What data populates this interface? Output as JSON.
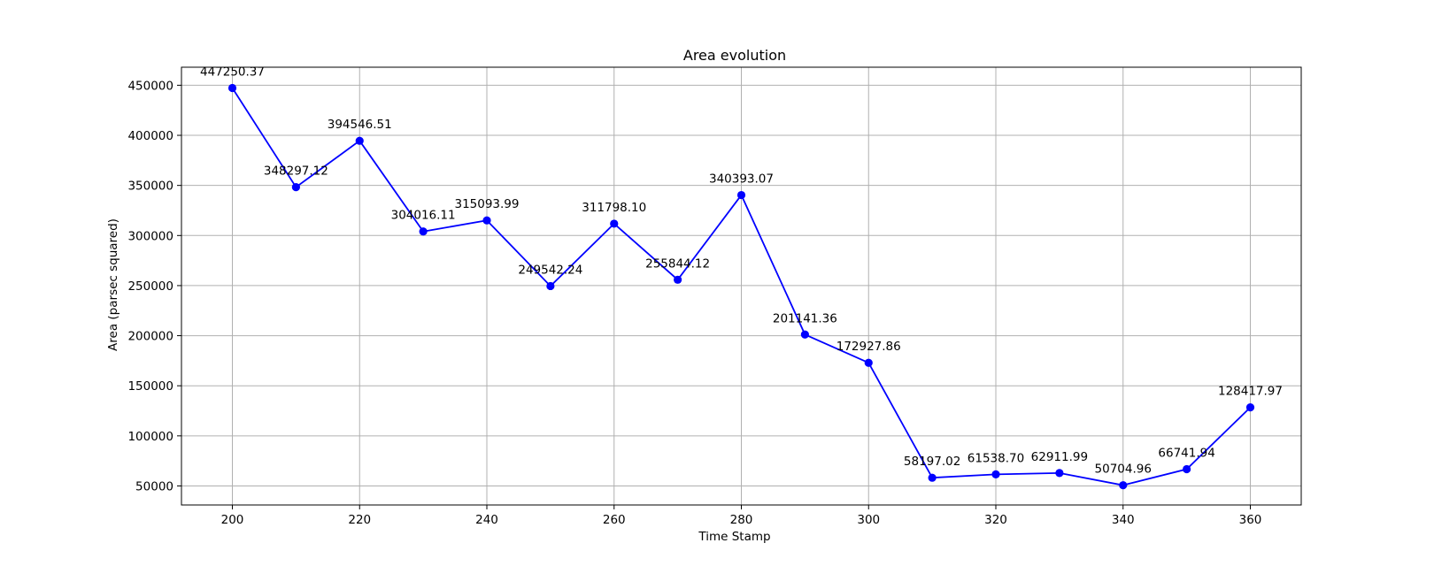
{
  "chart_data": {
    "type": "line",
    "title": "Area evolution",
    "xlabel": "Time Stamp",
    "ylabel": "Area (parsec squared)",
    "x": [
      200,
      210,
      220,
      230,
      240,
      250,
      260,
      270,
      280,
      290,
      300,
      310,
      320,
      330,
      340,
      350,
      360
    ],
    "series": [
      {
        "values": [
          447250.37,
          348297.12,
          394546.51,
          304016.11,
          315093.99,
          249542.24,
          311798.1,
          255844.12,
          340393.07,
          201141.36,
          172927.86,
          58197.02,
          61538.7,
          62911.99,
          50704.96,
          66741.94,
          128417.97
        ],
        "labels": [
          "447250.37",
          "348297.12",
          "394546.51",
          "304016.11",
          "315093.99",
          "249542.24",
          "311798.10",
          "255844.12",
          "340393.07",
          "201141.36",
          "172927.86",
          "58197.02",
          "61538.70",
          "62911.99",
          "50704.96",
          "66741.94",
          "128417.97"
        ],
        "color": "#0000ff",
        "marker": "circle"
      }
    ],
    "xticks": [
      200,
      220,
      240,
      260,
      280,
      300,
      320,
      340,
      360
    ],
    "yticks": [
      50000,
      100000,
      150000,
      200000,
      250000,
      300000,
      350000,
      400000,
      450000
    ],
    "xlim": [
      192,
      368
    ],
    "ylim": [
      31000,
      468000
    ],
    "grid": true,
    "legend": "none"
  }
}
